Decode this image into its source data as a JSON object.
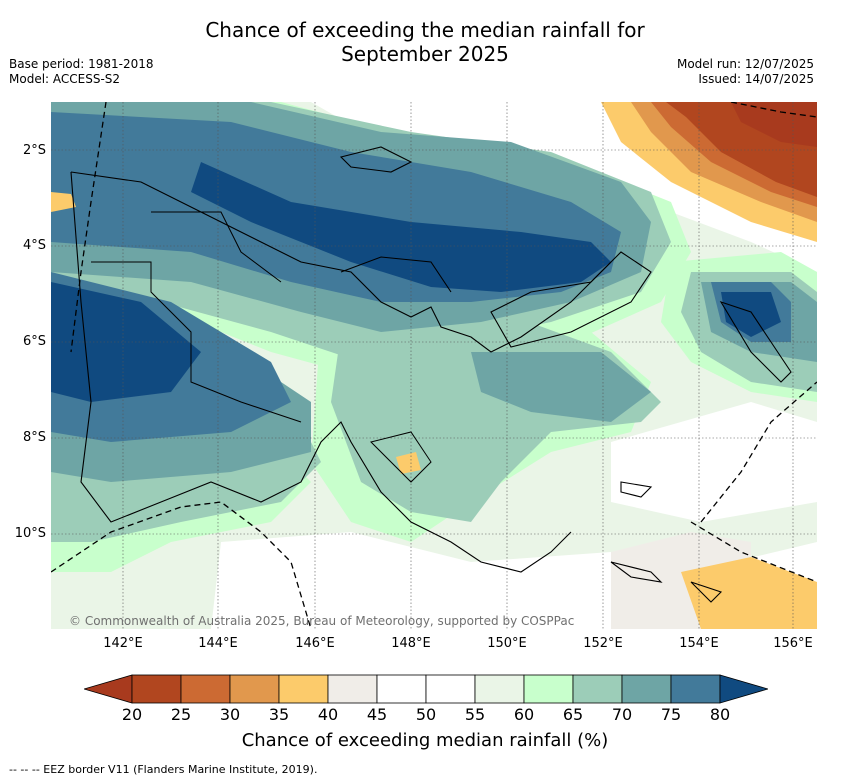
{
  "title_line1": "Chance of exceeding the median rainfall for",
  "title_line2": "September 2025",
  "meta": {
    "base_period": "Base period: 1981-2018",
    "model": "Model: ACCESS-S2",
    "model_run": "Model run: 12/07/2025",
    "issued": "Issued: 14/07/2025"
  },
  "axes": {
    "lat_labels": [
      "2°S",
      "4°S",
      "6°S",
      "8°S",
      "10°S"
    ],
    "lon_labels": [
      "142°E",
      "144°E",
      "146°E",
      "148°E",
      "150°E",
      "152°E",
      "154°E",
      "156°E"
    ]
  },
  "copyright": "© Commonwealth of Australia 2025, Bureau of Meteorology, supported by COSPPac",
  "colorbar": {
    "ticks": [
      "20",
      "25",
      "30",
      "35",
      "40",
      "45",
      "50",
      "55",
      "60",
      "65",
      "70",
      "75",
      "80"
    ],
    "colors": [
      "#a83a1e",
      "#b1461f",
      "#cc6a33",
      "#e1984d",
      "#fccb6b",
      "#f0ede8",
      "#ffffff",
      "#ffffff",
      "#eaf5e7",
      "#c8ffcc",
      "#9ccdb8",
      "#6ea5a5",
      "#427a9a",
      "#104a80"
    ],
    "label": "Chance of exceeding median rainfall (%)"
  },
  "footnote": "-- -- -- EEZ border V11 (Flanders Marine Institute, 2019)."
}
